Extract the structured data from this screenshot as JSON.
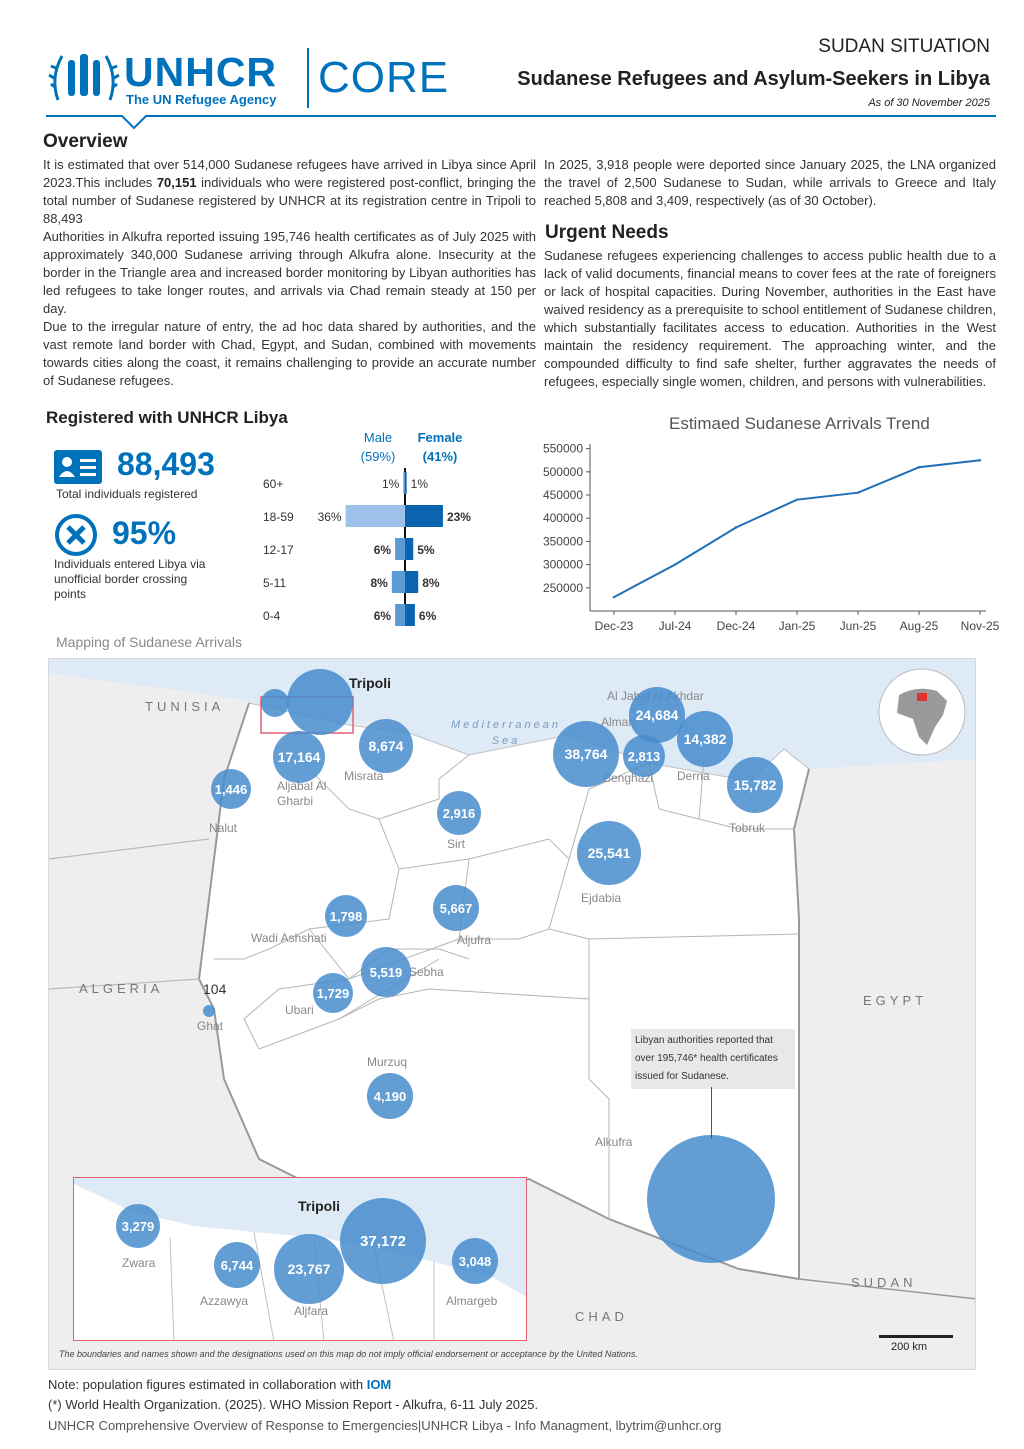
{
  "header": {
    "logo_main": "UNHCR",
    "logo_sub": "The UN Refugee Agency",
    "logo_core": "CORE",
    "situation": "SUDAN SITUATION",
    "title": "Sudanese Refugees and Asylum-Seekers in Libya",
    "as_of": "As of 30 November 2025"
  },
  "overview": {
    "title": "Overview",
    "p1_a": "It is estimated that over 514,000 Sudanese refugees have arrived in Libya since April 2023.This includes",
    "p1_num": "70,151",
    "p1_b": "individuals who were registered post-conflict, bringing the total number of Sudanese registered by UNHCR at its registration centre in Tripoli to 88,493",
    "p2": "Authorities in Alkufra reported issuing 195,746 health certificates as of July 2025 with approximately 340,000 Sudanese arriving through Alkufra alone. Insecurity at the border in the Triangle area and increased border monitoring by Libyan authorities has led refugees to take longer routes, and arrivals via Chad remain steady at 150 per day.",
    "p3": "Due to the irregular nature of entry, the ad hoc data shared by authorities, and the vast remote land border with Chad, Egypt, and Sudan, combined with movements towards cities along the coast, it remains challenging to provide an accurate number of Sudanese refugees.",
    "p4": "In 2025, 3,918 people were deported since January 2025, the LNA organized the travel of 2,500 Sudanese to Sudan, while arrivals to Greece and Italy reached 5,808 and 3,409, respectively (as of 30 October)."
  },
  "urgent": {
    "title": "Urgent Needs",
    "text": "Sudanese refugees experiencing challenges to access public health due to a lack of valid documents, financial means to cover fees at the rate of foreigners or lack of hospital capacities. During November, authorities in the East have waived residency as a prerequisite to school entitlement of Sudanese children, which substantially facilitates access to education. Authorities in the West maintain the residency requirement. The approaching winter, and the compounded difficulty to find safe shelter, further aggravates the needs of refugees, especially single women, children, and persons with vulnerabilities."
  },
  "registered": {
    "title": "Registered with UNHCR Libya",
    "total": "88,493",
    "total_label": "Total individuals registered",
    "pct": "95%",
    "pct_label": "Individuals entered Libya via unofficial border crossing points"
  },
  "pyramid": {
    "male_label": "Male",
    "male_pct": "(59%)",
    "female_label": "Female",
    "female_pct": "(41%)",
    "rows": [
      {
        "age": "60+",
        "male": 1,
        "female": 1,
        "male_label": "1%",
        "female_label": "1%"
      },
      {
        "age": "18-59",
        "male": 36,
        "female": 23,
        "male_label": "36%",
        "female_label": "23%"
      },
      {
        "age": "12-17",
        "male": 6,
        "female": 5,
        "male_label": "6%",
        "female_label": "5%"
      },
      {
        "age": "5-11",
        "male": 8,
        "female": 8,
        "male_label": "8%",
        "female_label": "8%"
      },
      {
        "age": "0-4",
        "male": 6,
        "female": 6,
        "male_label": "6%",
        "female_label": "6%"
      }
    ]
  },
  "chart_data": {
    "type": "line",
    "title": "Estimaed Sudanese Arrivals Trend",
    "categories": [
      "Dec-23",
      "Jul-24",
      "Dec-24",
      "Jan-25",
      "Jun-25",
      "Aug-25",
      "Nov-25"
    ],
    "x_ticks": [
      "Dec-23",
      "Jul-24",
      "Dec-24",
      "Jan-25",
      "Jun-25",
      "Aug-25",
      "Nov-25"
    ],
    "y_ticks": [
      "550000",
      "500000",
      "450000",
      "400000",
      "350000",
      "300000",
      "250000"
    ],
    "series": [
      {
        "name": "Estimated arrivals",
        "values": [
          230000,
          300000,
          380000,
          440000,
          455000,
          510000,
          525000
        ]
      }
    ],
    "ylim": [
      200000,
      560000
    ],
    "xlabel": "",
    "ylabel": ""
  },
  "map": {
    "caption": "Mapping of Sudanese Arrivals",
    "countries": {
      "tunisia": "TUNISIA",
      "algeria": "ALGERIA",
      "egypt": "EGYPT",
      "sudan": "SUDAN",
      "chad": "CHAD"
    },
    "sea": "Mediterranean Sea",
    "tripoli": "Tripoli",
    "regions": {
      "misrata": "Misrata",
      "azzawiya_north": "Azzawiya",
      "aljabal": "Aljabal Al Gharbi",
      "nalut": "Nalut",
      "sirt": "Sirt",
      "benghazi": "Benghazi",
      "derna": "Derna",
      "tobruk": "Tobruk",
      "ejdabia": "Ejdabia",
      "aljufra": "Aljufra",
      "wadi": "Wadi Ashshati",
      "sebha": "Sebha",
      "ubari": "Ubari",
      "ghat": "Ghat",
      "murzuq": "Murzuq",
      "alkufra": "Alkufra",
      "aljabal_akhdar": "Al Jabal Al Akhdar",
      "almarj": "Almarj"
    },
    "values": {
      "misrata": "8,674",
      "aljabal": "17,164",
      "nalut": "1,446",
      "sirt": "2,916",
      "benghazi": "38,764",
      "almarj": "2,813",
      "aljabal_akhdar": "24,684",
      "derna": "14,382",
      "tobruk": "15,782",
      "ejdabia": "25,541",
      "aljufra": "5,667",
      "wadi": "1,798",
      "sebha": "5,519",
      "ubari": "1,729",
      "ghat": "104",
      "murzuq": "4,190"
    },
    "callout": "Libyan authorities reported that over 195,746* health certificates issued for Sudanese.",
    "inset": {
      "tripoli": "Tripoli",
      "zwara": "Zwara",
      "zwara_v": "3,279",
      "azzawya": "Azzawya",
      "azzawya_v": "6,744",
      "aljfara": "Aljfara",
      "aljfara_v": "23,767",
      "tripoli_v": "37,172",
      "almargeb": "Almargeb",
      "almargeb_v": "3,048"
    },
    "disclaimer": "The boundaries and names shown and the designations used on this map do not imply official endorsement or acceptance by the United Nations.",
    "scale": "200 km"
  },
  "footer": {
    "note_a": "Note: population figures estimated in collaboration with",
    "note_iom": "IOM",
    "ref": "(*) World Health Organization. (2025). WHO Mission Report - Alkufra, 6-11 July 2025.",
    "credit": "UNHCR Comprehensive Overview of Response to Emergencies|UNHCR Libya  -  Info Managment, lbytrim@unhcr.org"
  },
  "colors": {
    "brand": "#0072bc",
    "bubble": "#4a8fd0",
    "bar_dark": "#0b64b0",
    "bar_light": "#9dc3ea"
  }
}
